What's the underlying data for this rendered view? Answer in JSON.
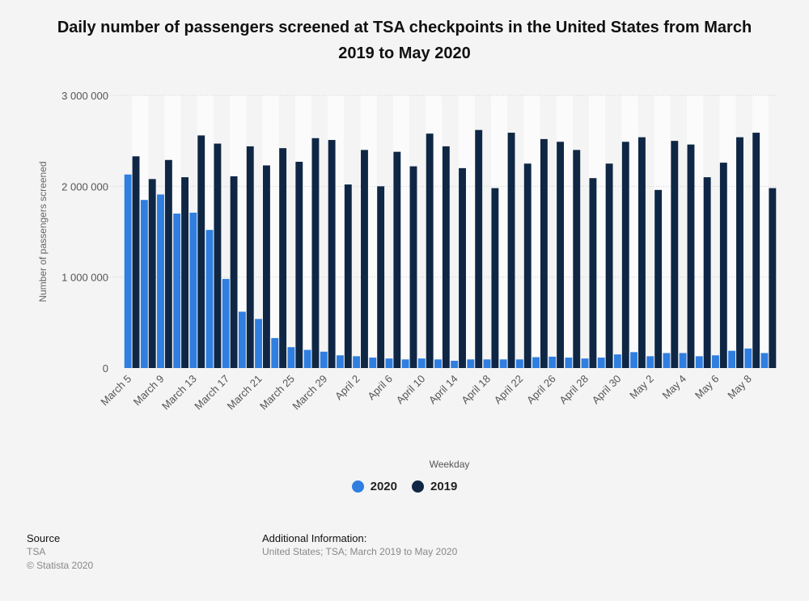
{
  "title": "Daily number of passengers screened at TSA checkpoints in the United States from March 2019 to May 2020",
  "colors": {
    "s2020": "#2f7ee0",
    "s2019": "#0f2745"
  },
  "footer": {
    "source_heading": "Source",
    "source_lines": [
      "TSA",
      "© Statista 2020"
    ],
    "info_heading": "Additional Information:",
    "info_text": "United States; TSA; March 2019 to May 2020"
  },
  "chart_data": {
    "type": "bar",
    "xlabel": "Weekday",
    "ylabel": "Number of passengers screened",
    "ylim": [
      0,
      3000000
    ],
    "yticks": [
      0,
      1000000,
      2000000,
      3000000
    ],
    "ytick_labels": [
      "0",
      "1 000 000",
      "2 000 000",
      "3 000 000"
    ],
    "grid": true,
    "legend_position": "bottom",
    "categories": [
      "March 5",
      "March 7",
      "March 9",
      "March 11",
      "March 13",
      "March 15",
      "March 17",
      "March 19",
      "March 21",
      "March 23",
      "March 25",
      "March 27",
      "March 29",
      "March 31",
      "April 2",
      "April 4",
      "April 6",
      "April 8",
      "April 10",
      "April 12",
      "April 14",
      "April 16",
      "April 18",
      "April 20",
      "April 22",
      "April 24",
      "April 26",
      "April 27",
      "April 28",
      "April 29",
      "April 30",
      "May 1",
      "May 2",
      "May 3",
      "May 4",
      "May 5",
      "May 6",
      "May 7",
      "May 8",
      "May 9"
    ],
    "shown_tick_labels": [
      "March 5",
      "March 9",
      "March 13",
      "March 17",
      "March 21",
      "March 25",
      "March 29",
      "April 2",
      "April 6",
      "April 10",
      "April 14",
      "April 18",
      "April 22",
      "April 26",
      "April 28",
      "April 30",
      "May 2",
      "May 4",
      "May 6",
      "May 8"
    ],
    "series": [
      {
        "name": "2020",
        "values": [
          2130000,
          1850000,
          1910000,
          1700000,
          1710000,
          1520000,
          980000,
          620000,
          540000,
          330000,
          230000,
          200000,
          180000,
          140000,
          130000,
          115000,
          105000,
          95000,
          105000,
          95000,
          80000,
          95000,
          95000,
          95000,
          95000,
          120000,
          125000,
          115000,
          105000,
          115000,
          150000,
          175000,
          130000,
          165000,
          165000,
          130000,
          140000,
          190000,
          215000,
          165000
        ]
      },
      {
        "name": "2019",
        "values": [
          2330000,
          2080000,
          2290000,
          2100000,
          2560000,
          2470000,
          2110000,
          2440000,
          2230000,
          2420000,
          2270000,
          2530000,
          2510000,
          2020000,
          2400000,
          2000000,
          2380000,
          2220000,
          2580000,
          2440000,
          2200000,
          2620000,
          1980000,
          2590000,
          2250000,
          2520000,
          2490000,
          2400000,
          2090000,
          2250000,
          2490000,
          2540000,
          1960000,
          2500000,
          2460000,
          2100000,
          2260000,
          2540000,
          2590000,
          1980000
        ]
      }
    ]
  }
}
